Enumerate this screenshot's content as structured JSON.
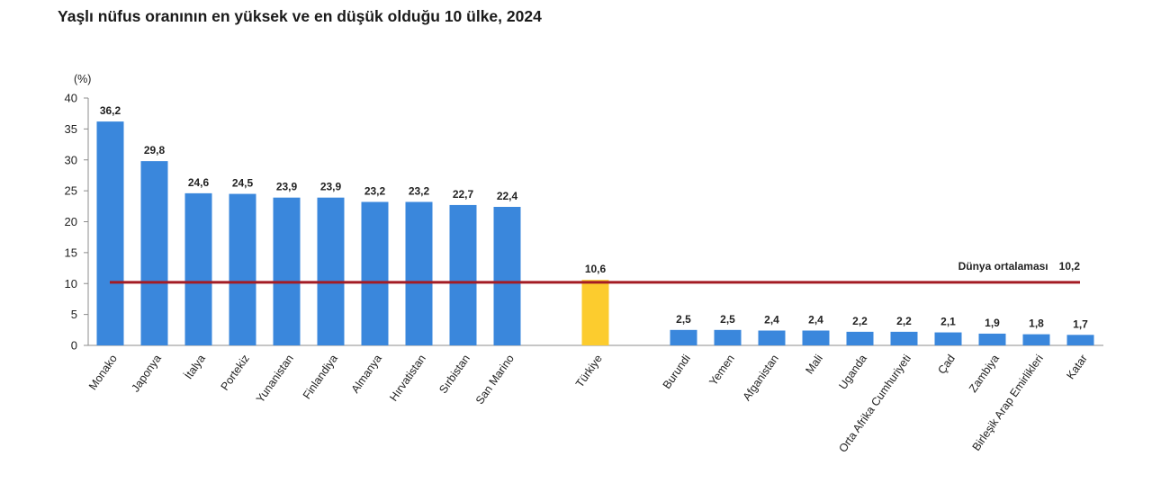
{
  "title": "Yaşlı nüfus oranının en yüksek ve en düşük olduğu 10 ülke, 2024",
  "chart_data": {
    "type": "bar",
    "unit_label": "(%)",
    "ylim": [
      0,
      40
    ],
    "yticks": [
      0,
      5,
      10,
      15,
      20,
      25,
      30,
      35,
      40
    ],
    "categories": [
      "Monako",
      "Japonya",
      "İtalya",
      "Portekiz",
      "Yunanistan",
      "Finlandiya",
      "Almanya",
      "Hırvatistan",
      "Sırbistan",
      "San Marino",
      "Türkiye",
      "Burundi",
      "Yemen",
      "Afganistan",
      "Mali",
      "Uganda",
      "Orta Afrika Cumhuriyeti",
      "Çad",
      "Zambiya",
      "Birleşik Arap Emirlikleri",
      "Katar"
    ],
    "values": [
      36.2,
      29.8,
      24.6,
      24.5,
      23.9,
      23.9,
      23.2,
      23.2,
      22.7,
      22.4,
      10.6,
      2.5,
      2.5,
      2.4,
      2.4,
      2.2,
      2.2,
      2.1,
      1.9,
      1.8,
      1.7
    ],
    "value_labels": [
      "36,2",
      "29,8",
      "24,6",
      "24,5",
      "23,9",
      "23,9",
      "23,2",
      "23,2",
      "22,7",
      "22,4",
      "10,6",
      "2,5",
      "2,5",
      "2,4",
      "2,4",
      "2,2",
      "2,2",
      "2,1",
      "1,9",
      "1,8",
      "1,7"
    ],
    "highlight_category": "Türkiye",
    "reference_line": {
      "label": "Dünya ortalaması",
      "value": 10.2,
      "value_label": "10,2"
    },
    "colors": {
      "bar": "#3a87dc",
      "highlight": "#fccc2e",
      "reference_line": "#a31b23"
    },
    "grid": false
  }
}
